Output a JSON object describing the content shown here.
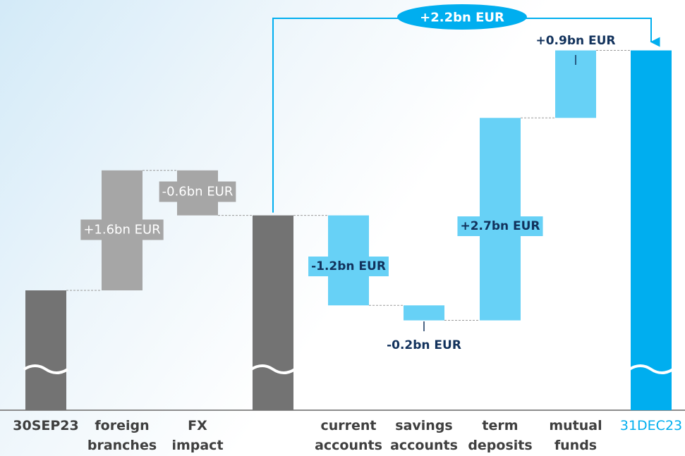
{
  "chart_data": {
    "type": "waterfall",
    "categories": [
      [
        "30SEP23"
      ],
      [
        "foreign",
        "branches"
      ],
      [
        "FX",
        "impact"
      ],
      [
        ""
      ],
      [
        "current",
        "accounts"
      ],
      [
        "savings",
        "accounts"
      ],
      [
        "term",
        "deposits"
      ],
      [
        "mutual",
        "funds"
      ],
      [
        "31DEC23"
      ]
    ],
    "steps": [
      {
        "kind": "total",
        "value": 6.3
      },
      {
        "kind": "delta",
        "value": 1.6,
        "label": "+1.6bn EUR",
        "group": "gray"
      },
      {
        "kind": "delta",
        "value": -0.6,
        "label": "-0.6bn EUR",
        "group": "gray"
      },
      {
        "kind": "total",
        "value": 7.3
      },
      {
        "kind": "delta",
        "value": -1.2,
        "label": "-1.2bn EUR",
        "group": "blue"
      },
      {
        "kind": "delta",
        "value": -0.2,
        "label": "-0.2bn EUR",
        "group": "blue"
      },
      {
        "kind": "delta",
        "value": 2.7,
        "label": "+2.7bn EUR",
        "group": "blue"
      },
      {
        "kind": "delta",
        "value": 0.9,
        "label": "+0.9bn EUR",
        "group": "blue"
      },
      {
        "kind": "total",
        "value": 9.5
      }
    ],
    "overall_change_label": "+2.2bn EUR",
    "axis_break": true,
    "colors": {
      "total_dark": "#737373",
      "delta_gray": "#a6a6a6",
      "delta_blue": "#67d1f6",
      "total_blue": "#00aeef",
      "label_dark": "#12325c",
      "category_text": "#3f3f3f",
      "category_accent": "#00aeef"
    }
  }
}
